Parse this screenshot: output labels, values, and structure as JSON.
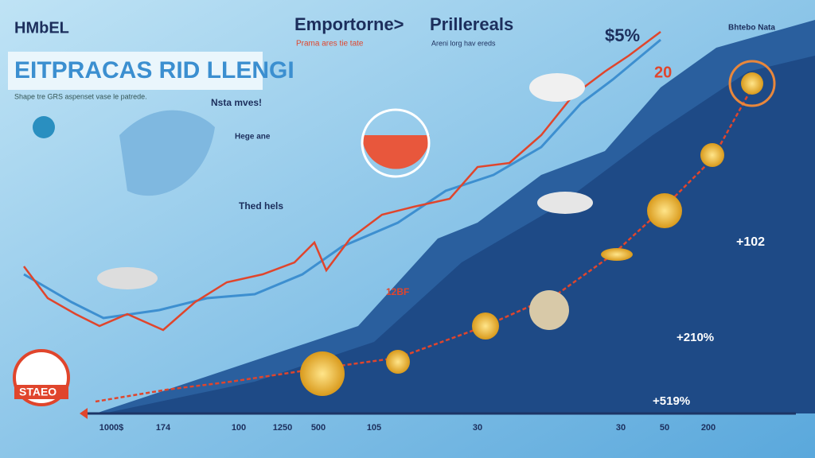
{
  "header": {
    "logo": "HMbEL",
    "title": "EITPRACAS RID LLENGI",
    "subtitle": "Shape tre GRS aspenset vase le patrede."
  },
  "sections": [
    {
      "heading": "Emportorne>",
      "text": "Prama ares tie tate"
    },
    {
      "heading": "Prillereals",
      "text": "Areni lorg hav ereds"
    }
  ],
  "callouts": [
    "$5%",
    "20",
    "Nsta mves!",
    "Thed hels",
    "Hege ane",
    "+102",
    "+210%",
    "+519%",
    "STAEO",
    "Bhtebo Nata",
    "12BF"
  ],
  "x_labels": [
    "1000$",
    "174",
    "100",
    "1250",
    "500",
    "105",
    "30",
    "30",
    "50",
    "200"
  ]
}
